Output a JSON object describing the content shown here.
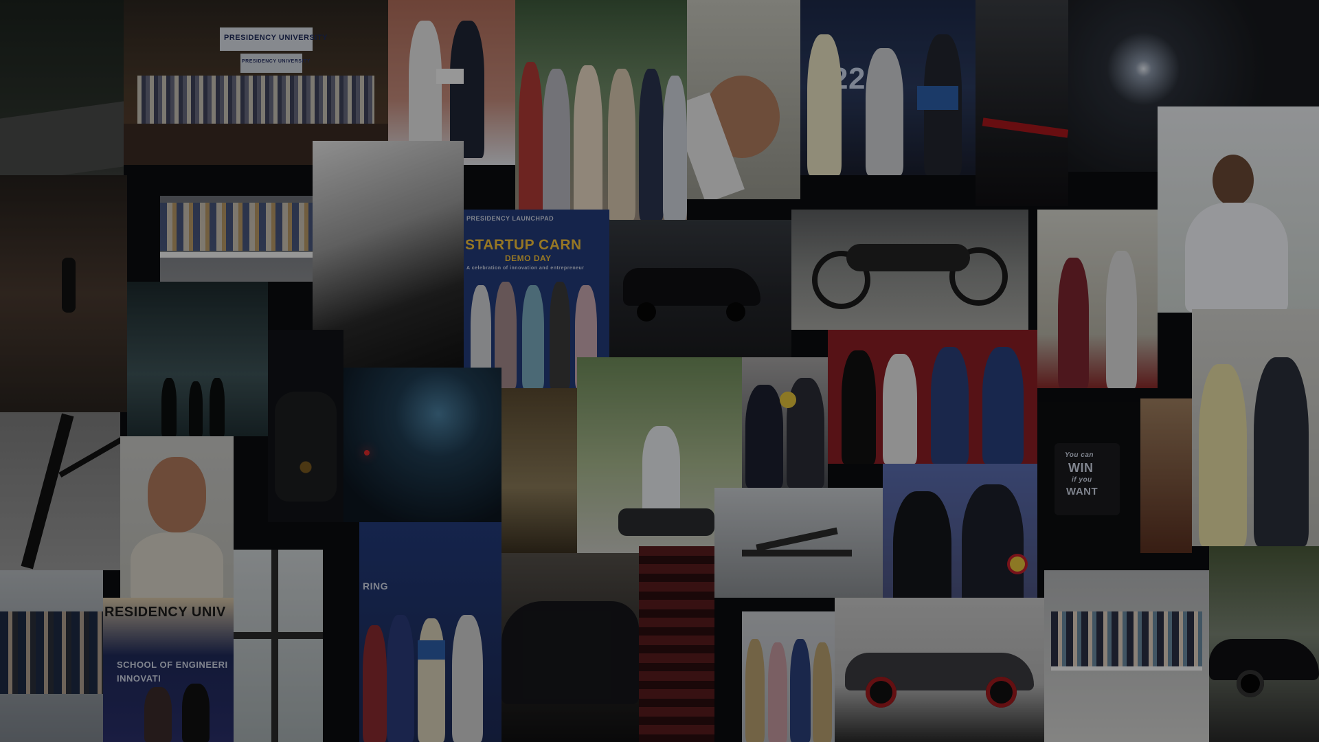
{
  "collage": {
    "texts": {
      "banner_top": "PRESIDENCY UNIVERSITY",
      "banner_top_sub": "PRESIDENCY UNIVERSITY",
      "startup_title": "STARTUP CARN",
      "startup_sub": "DEMO DAY",
      "startup_line": "A celebration of innovation and entrepreneur",
      "presidency_launchpad": "PRESIDENCY LAUNCHPAD",
      "residency_banner": "RESIDENCY UNIV",
      "school_eng": "SCHOOL OF ENGINEERI",
      "innovation": "INNOVATI",
      "ring": "RING",
      "mug_win": "WIN",
      "mug_line1": "You can",
      "mug_line2": "if you",
      "mug_want": "WANT",
      "award_22": "22"
    },
    "colors": {
      "overlay": "#000000",
      "background": "#0b0c0f",
      "award_red": "#b01f2c",
      "banner_blue": "#1f3a7a",
      "stage_red": "#8c1e24"
    }
  }
}
